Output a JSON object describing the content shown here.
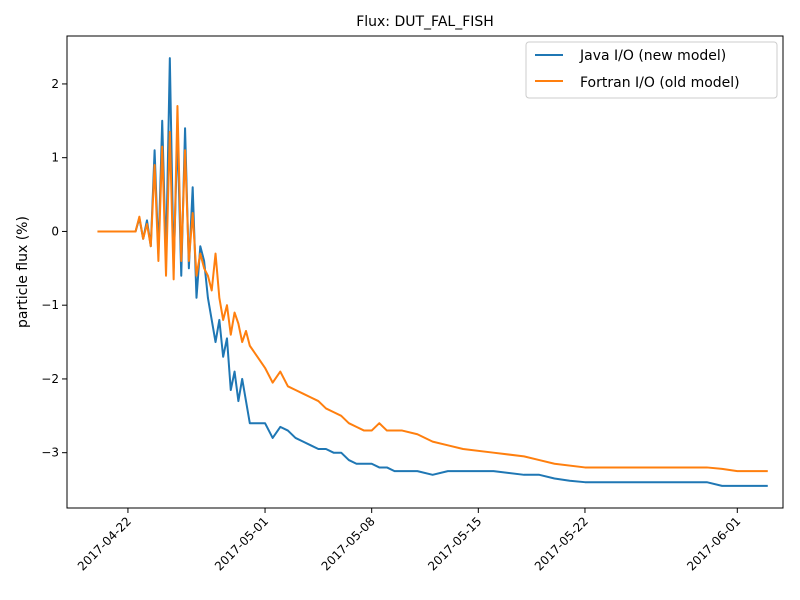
{
  "chart_data": {
    "type": "line",
    "title": "Flux: DUT_FAL_FISH",
    "xlabel": "",
    "ylabel": "particle flux (%)",
    "x_axis_type": "date",
    "xlim": [
      "2017-04-18",
      "2017-06-04"
    ],
    "ylim": [
      -3.75,
      2.65
    ],
    "x_ticks": [
      "2017-04-22",
      "2017-05-01",
      "2017-05-08",
      "2017-05-15",
      "2017-05-22",
      "2017-06-01"
    ],
    "y_ticks": [
      -3,
      -2,
      -1,
      0,
      1,
      2
    ],
    "y_tick_labels": [
      "−3",
      "−2",
      "−1",
      "0",
      "1",
      "2"
    ],
    "grid": false,
    "legend_position": "top-right",
    "series": [
      {
        "name": "Java I/O (new model)",
        "color": "#1f77b4",
        "x": [
          "2017-04-20 00:00",
          "2017-04-22 12:00",
          "2017-04-22 18:00",
          "2017-04-23 00:00",
          "2017-04-23 06:00",
          "2017-04-23 12:00",
          "2017-04-23 18:00",
          "2017-04-24 00:00",
          "2017-04-24 06:00",
          "2017-04-24 12:00",
          "2017-04-24 18:00",
          "2017-04-25 00:00",
          "2017-04-25 06:00",
          "2017-04-25 12:00",
          "2017-04-25 18:00",
          "2017-04-26 00:00",
          "2017-04-26 06:00",
          "2017-04-26 12:00",
          "2017-04-26 18:00",
          "2017-04-27 00:00",
          "2017-04-27 06:00",
          "2017-04-27 12:00",
          "2017-04-27 18:00",
          "2017-04-28 00:00",
          "2017-04-28 06:00",
          "2017-04-28 12:00",
          "2017-04-28 18:00",
          "2017-04-29 00:00",
          "2017-04-29 06:00",
          "2017-04-29 12:00",
          "2017-04-29 18:00",
          "2017-04-30 00:00",
          "2017-04-30 12:00",
          "2017-05-01 00:00",
          "2017-05-01 12:00",
          "2017-05-02 00:00",
          "2017-05-02 12:00",
          "2017-05-03 00:00",
          "2017-05-03 12:00",
          "2017-05-04 00:00",
          "2017-05-04 12:00",
          "2017-05-05 00:00",
          "2017-05-05 12:00",
          "2017-05-06 00:00",
          "2017-05-06 12:00",
          "2017-05-07 00:00",
          "2017-05-07 12:00",
          "2017-05-08 00:00",
          "2017-05-08 12:00",
          "2017-05-09 00:00",
          "2017-05-09 12:00",
          "2017-05-10 00:00",
          "2017-05-11 00:00",
          "2017-05-12 00:00",
          "2017-05-13 00:00",
          "2017-05-14 00:00",
          "2017-05-16 00:00",
          "2017-05-18 00:00",
          "2017-05-19 00:00",
          "2017-05-20 00:00",
          "2017-05-21 00:00",
          "2017-05-22 00:00",
          "2017-05-24 00:00",
          "2017-05-27 00:00",
          "2017-05-30 00:00",
          "2017-05-31 00:00",
          "2017-06-01 00:00",
          "2017-06-02 00:00",
          "2017-06-03 00:00"
        ],
        "y": [
          0.0,
          0.0,
          0.18,
          -0.1,
          0.15,
          -0.2,
          1.1,
          -0.3,
          1.5,
          -0.4,
          2.35,
          -0.5,
          1.35,
          -0.6,
          1.4,
          -0.5,
          0.6,
          -0.9,
          -0.2,
          -0.4,
          -0.9,
          -1.2,
          -1.5,
          -1.2,
          -1.7,
          -1.45,
          -2.15,
          -1.9,
          -2.3,
          -2.0,
          -2.3,
          -2.6,
          -2.6,
          -2.6,
          -2.8,
          -2.65,
          -2.7,
          -2.8,
          -2.85,
          -2.9,
          -2.95,
          -2.95,
          -3.0,
          -3.0,
          -3.1,
          -3.15,
          -3.15,
          -3.15,
          -3.2,
          -3.2,
          -3.25,
          -3.25,
          -3.25,
          -3.3,
          -3.25,
          -3.25,
          -3.25,
          -3.3,
          -3.3,
          -3.35,
          -3.38,
          -3.4,
          -3.4,
          -3.4,
          -3.4,
          -3.45,
          -3.45,
          -3.45,
          -3.45
        ]
      },
      {
        "name": "Fortran I/O (old model)",
        "color": "#ff7f0e",
        "x": [
          "2017-04-20 00:00",
          "2017-04-22 12:00",
          "2017-04-22 18:00",
          "2017-04-23 00:00",
          "2017-04-23 06:00",
          "2017-04-23 12:00",
          "2017-04-23 18:00",
          "2017-04-24 00:00",
          "2017-04-24 06:00",
          "2017-04-24 12:00",
          "2017-04-24 18:00",
          "2017-04-25 00:00",
          "2017-04-25 06:00",
          "2017-04-25 12:00",
          "2017-04-25 18:00",
          "2017-04-26 00:00",
          "2017-04-26 06:00",
          "2017-04-26 12:00",
          "2017-04-26 18:00",
          "2017-04-27 00:00",
          "2017-04-27 06:00",
          "2017-04-27 12:00",
          "2017-04-27 18:00",
          "2017-04-28 00:00",
          "2017-04-28 06:00",
          "2017-04-28 12:00",
          "2017-04-28 18:00",
          "2017-04-29 00:00",
          "2017-04-29 06:00",
          "2017-04-29 12:00",
          "2017-04-29 18:00",
          "2017-04-30 00:00",
          "2017-04-30 12:00",
          "2017-05-01 00:00",
          "2017-05-01 12:00",
          "2017-05-02 00:00",
          "2017-05-02 12:00",
          "2017-05-03 00:00",
          "2017-05-03 12:00",
          "2017-05-04 00:00",
          "2017-05-04 12:00",
          "2017-05-05 00:00",
          "2017-05-05 12:00",
          "2017-05-06 00:00",
          "2017-05-06 12:00",
          "2017-05-07 00:00",
          "2017-05-07 12:00",
          "2017-05-08 00:00",
          "2017-05-08 12:00",
          "2017-05-09 00:00",
          "2017-05-10 00:00",
          "2017-05-11 00:00",
          "2017-05-12 00:00",
          "2017-05-13 00:00",
          "2017-05-14 00:00",
          "2017-05-16 00:00",
          "2017-05-18 00:00",
          "2017-05-19 00:00",
          "2017-05-20 00:00",
          "2017-05-22 00:00",
          "2017-05-24 00:00",
          "2017-05-27 00:00",
          "2017-05-30 00:00",
          "2017-05-31 00:00",
          "2017-06-01 00:00",
          "2017-06-02 00:00",
          "2017-06-03 00:00"
        ],
        "y": [
          0.0,
          0.0,
          0.2,
          -0.1,
          0.1,
          -0.2,
          0.9,
          -0.4,
          1.15,
          -0.6,
          1.35,
          -0.65,
          1.7,
          -0.4,
          1.1,
          -0.4,
          0.25,
          -0.6,
          -0.3,
          -0.5,
          -0.6,
          -0.8,
          -0.3,
          -0.9,
          -1.2,
          -1.0,
          -1.4,
          -1.1,
          -1.25,
          -1.5,
          -1.35,
          -1.55,
          -1.7,
          -1.85,
          -2.05,
          -1.9,
          -2.1,
          -2.15,
          -2.2,
          -2.25,
          -2.3,
          -2.4,
          -2.45,
          -2.5,
          -2.6,
          -2.65,
          -2.7,
          -2.7,
          -2.6,
          -2.7,
          -2.7,
          -2.75,
          -2.85,
          -2.9,
          -2.95,
          -3.0,
          -3.05,
          -3.1,
          -3.15,
          -3.2,
          -3.2,
          -3.2,
          -3.2,
          -3.22,
          -3.25,
          -3.25,
          -3.25
        ]
      }
    ]
  }
}
